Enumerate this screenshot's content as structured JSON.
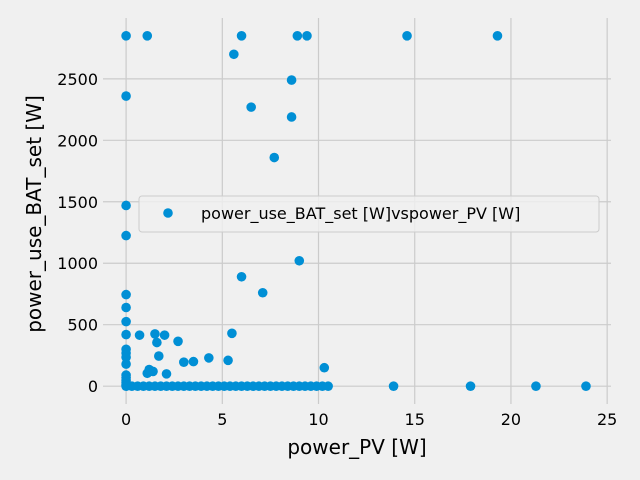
{
  "chart_data": {
    "type": "scatter",
    "xlabel": "power_PV [W]",
    "ylabel": "power_use_BAT_set [W]",
    "xlim": [
      -1.2,
      25.2
    ],
    "ylim": [
      -145,
      2995
    ],
    "xticks": [
      0,
      5,
      10,
      15,
      20,
      25
    ],
    "yticks": [
      0,
      500,
      1000,
      1500,
      2000,
      2500
    ],
    "grid": true,
    "legend_position": "center",
    "colors": {
      "series": "#008fd5",
      "background": "#f0f0f0",
      "grid": "#cbcbcb"
    },
    "series": [
      {
        "name": "power_use_BAT_set [W]vspower_PV [W]",
        "points": [
          [
            0,
            2850
          ],
          [
            1.1,
            2850
          ],
          [
            6.0,
            2850
          ],
          [
            8.9,
            2850
          ],
          [
            9.4,
            2850
          ],
          [
            14.6,
            2850
          ],
          [
            19.3,
            2850
          ],
          [
            5.6,
            2700
          ],
          [
            8.6,
            2490
          ],
          [
            0,
            2360
          ],
          [
            6.5,
            2270
          ],
          [
            8.6,
            2190
          ],
          [
            7.7,
            1860
          ],
          [
            0,
            1470
          ],
          [
            0,
            1225
          ],
          [
            9.0,
            1020
          ],
          [
            6.0,
            890
          ],
          [
            7.1,
            760
          ],
          [
            0,
            745
          ],
          [
            0,
            640
          ],
          [
            0,
            525
          ],
          [
            5.5,
            430
          ],
          [
            0,
            420
          ],
          [
            0.7,
            415
          ],
          [
            1.5,
            425
          ],
          [
            2.0,
            415
          ],
          [
            1.6,
            355
          ],
          [
            2.7,
            365
          ],
          [
            0,
            300
          ],
          [
            0,
            270
          ],
          [
            1.7,
            245
          ],
          [
            0,
            235
          ],
          [
            5.3,
            210
          ],
          [
            4.3,
            230
          ],
          [
            3.5,
            200
          ],
          [
            3.0,
            195
          ],
          [
            0,
            180
          ],
          [
            10.3,
            150
          ],
          [
            1.2,
            135
          ],
          [
            1.4,
            120
          ],
          [
            1.1,
            105
          ],
          [
            2.1,
            100
          ],
          [
            0,
            90
          ],
          [
            0,
            70
          ],
          [
            0,
            50
          ],
          [
            0,
            30
          ],
          [
            0,
            15
          ],
          [
            0,
            5
          ],
          [
            0,
            0
          ],
          [
            0.3,
            0
          ],
          [
            0.6,
            0
          ],
          [
            0.9,
            0
          ],
          [
            1.2,
            0
          ],
          [
            1.5,
            0
          ],
          [
            1.8,
            0
          ],
          [
            2.1,
            0
          ],
          [
            2.4,
            0
          ],
          [
            2.7,
            0
          ],
          [
            3.0,
            0
          ],
          [
            3.3,
            0
          ],
          [
            3.6,
            0
          ],
          [
            3.9,
            0
          ],
          [
            4.2,
            0
          ],
          [
            4.5,
            0
          ],
          [
            4.8,
            0
          ],
          [
            5.1,
            0
          ],
          [
            5.4,
            0
          ],
          [
            5.7,
            0
          ],
          [
            6.0,
            0
          ],
          [
            6.3,
            0
          ],
          [
            6.6,
            0
          ],
          [
            6.9,
            0
          ],
          [
            7.2,
            0
          ],
          [
            7.5,
            0
          ],
          [
            7.8,
            0
          ],
          [
            8.1,
            0
          ],
          [
            8.4,
            0
          ],
          [
            8.7,
            0
          ],
          [
            9.0,
            0
          ],
          [
            9.3,
            0
          ],
          [
            9.6,
            0
          ],
          [
            9.9,
            0
          ],
          [
            10.2,
            0
          ],
          [
            10.5,
            0
          ],
          [
            13.9,
            0
          ],
          [
            17.9,
            0
          ],
          [
            21.3,
            0
          ],
          [
            23.9,
            0
          ]
        ]
      }
    ]
  }
}
